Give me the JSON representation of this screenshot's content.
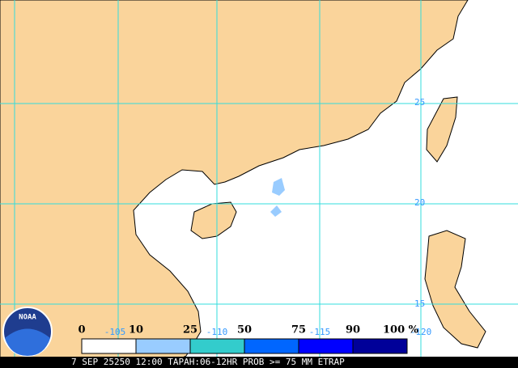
{
  "map": {
    "logo": "NOAA",
    "grid_labels": {
      "lon": [
        "-105",
        "-110",
        "-115",
        "-120"
      ],
      "lat": [
        "25",
        "20",
        "15"
      ]
    },
    "legend": {
      "labels": [
        "0",
        "10",
        "25",
        "50",
        "75",
        "90",
        "100 %"
      ],
      "colors": [
        "#ffffff",
        "#99ccff",
        "#33cccc",
        "#0066ff",
        "#0000ff",
        "#000099"
      ]
    },
    "caption": "7 SEP 25250 12:00 TAPAH:06-12HR PROB >= 75 MM ETRAP"
  }
}
